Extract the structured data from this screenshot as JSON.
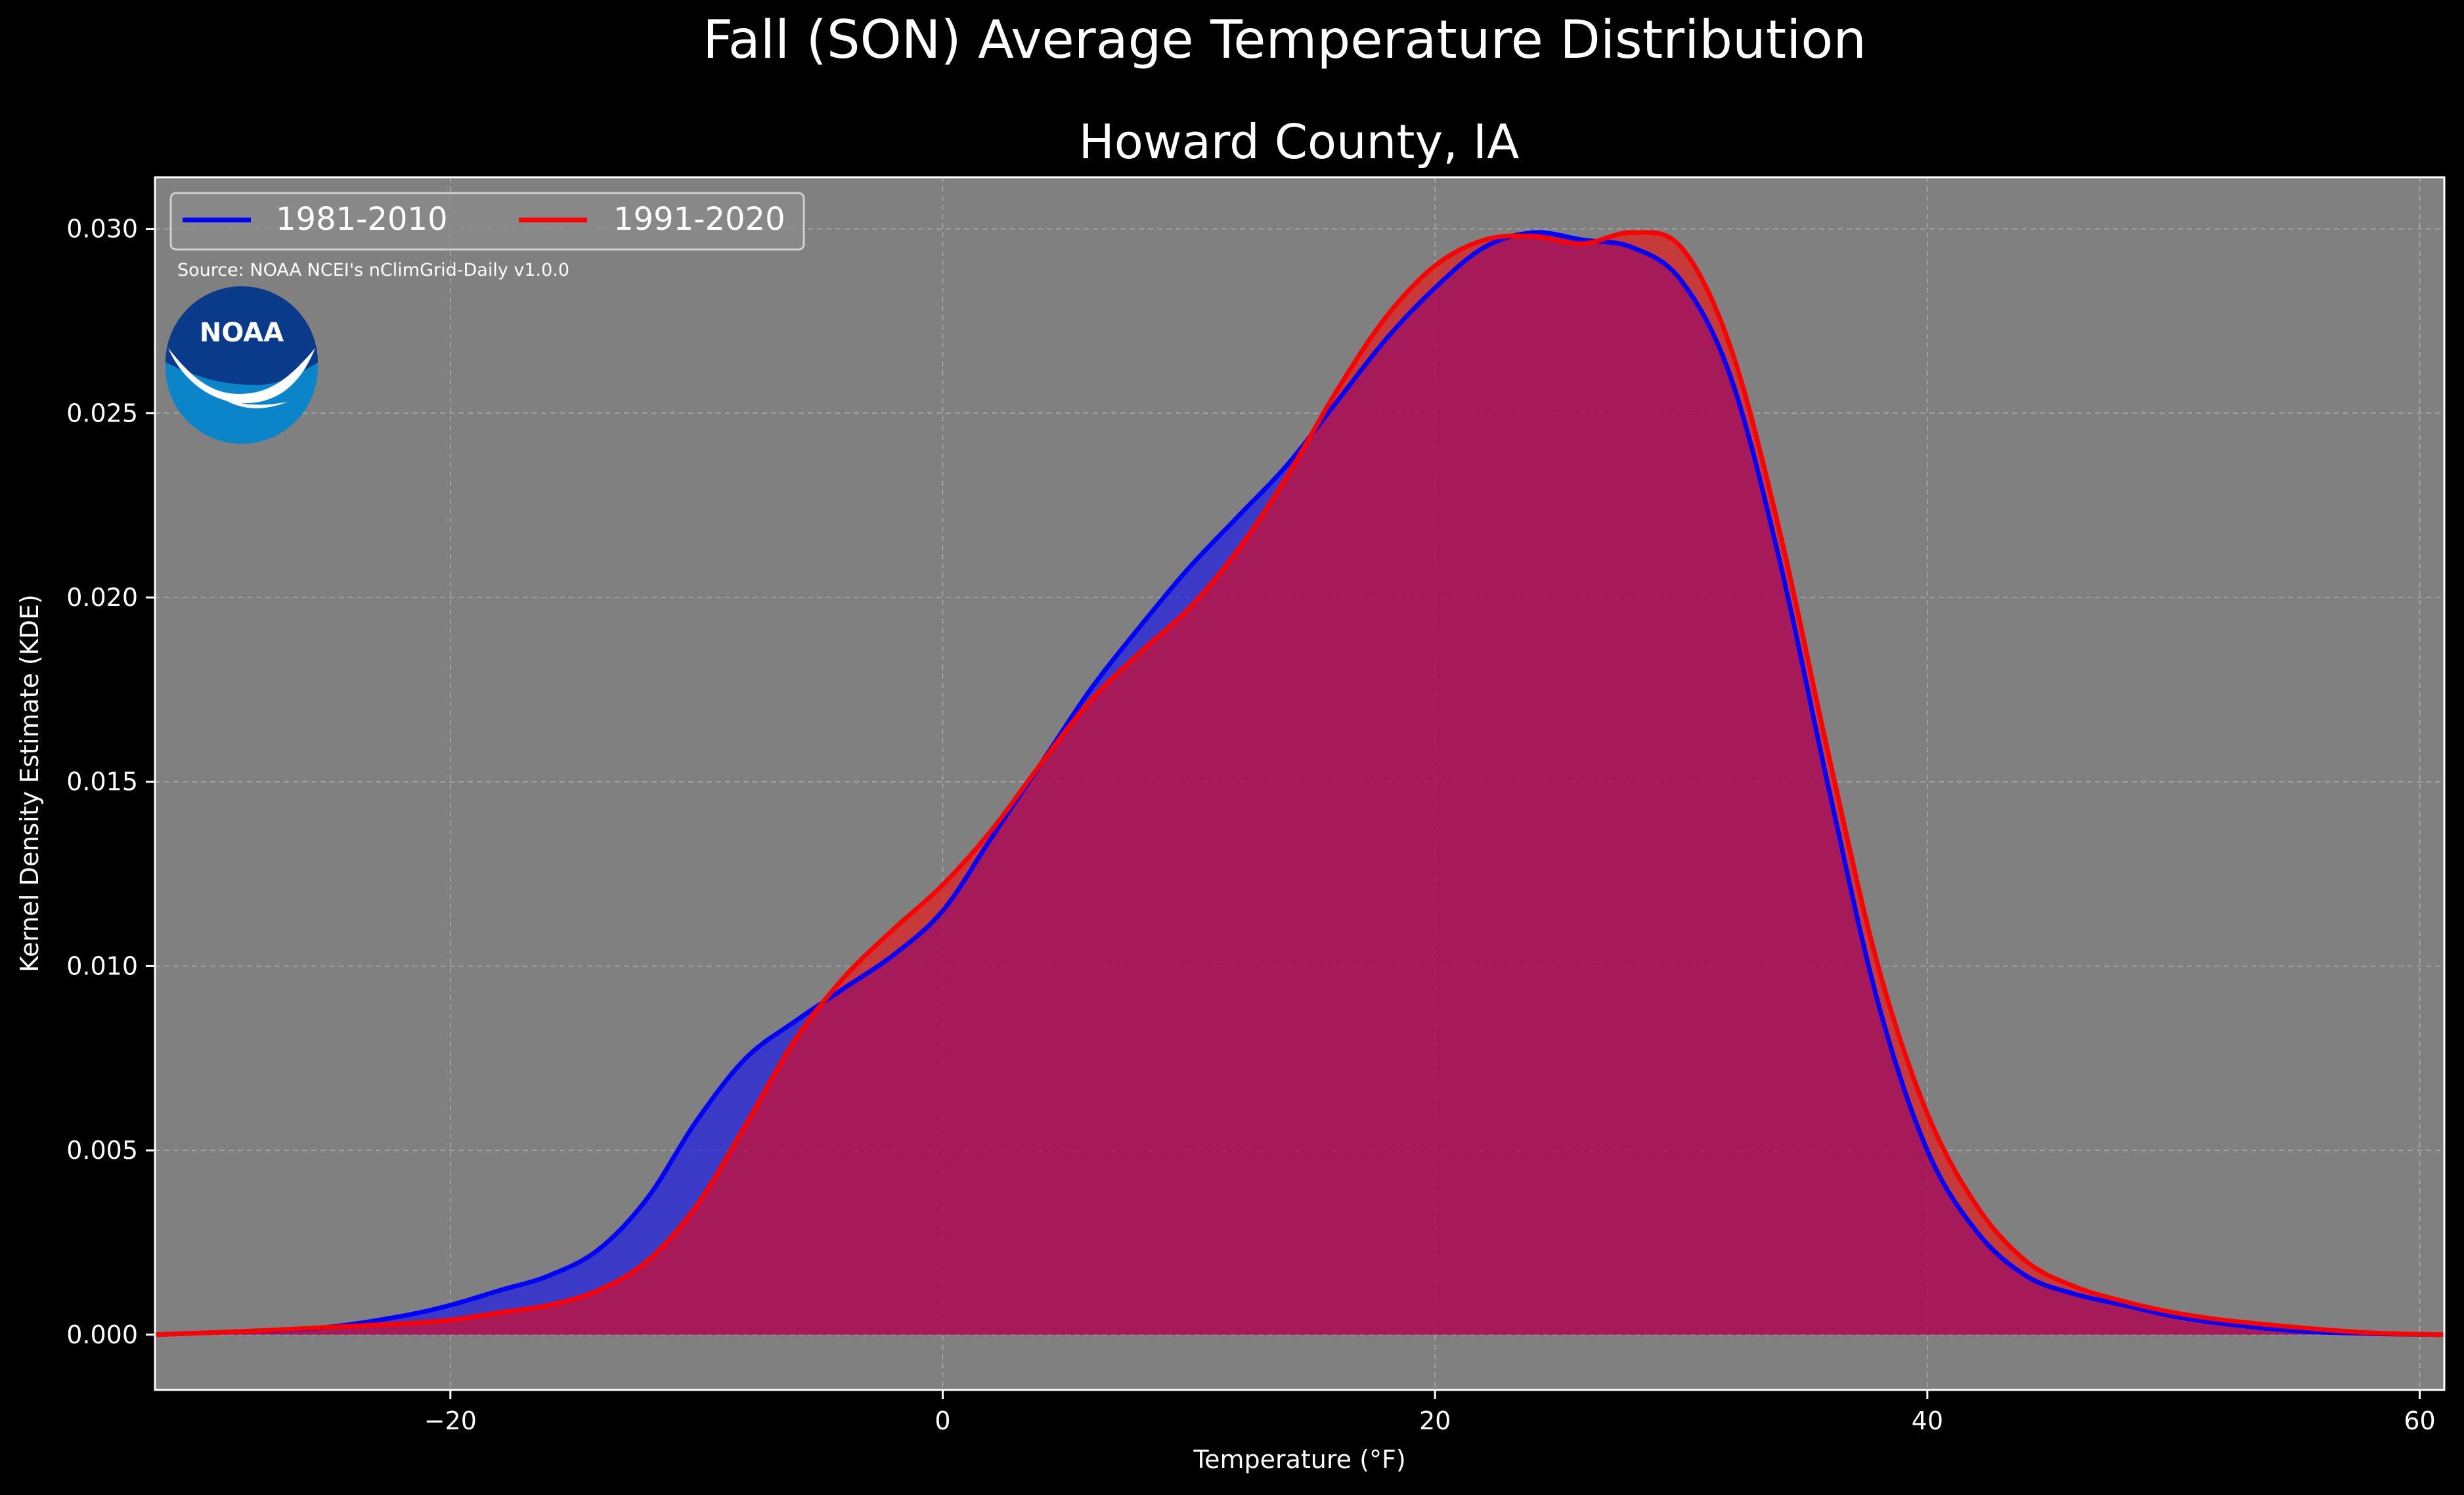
{
  "chart_data": {
    "type": "area",
    "title": "Fall (SON) Average Temperature Distribution",
    "subtitle": "Howard County, IA",
    "xlabel": "Temperature (°F)",
    "ylabel": "Kernel Density Estimate (KDE)",
    "xlim": [
      -32,
      61
    ],
    "ylim": [
      -0.0015,
      0.0314
    ],
    "xticks": [
      -20,
      0,
      20,
      40,
      60
    ],
    "xtick_labels": [
      "−20",
      "0",
      "20",
      "40",
      "60"
    ],
    "yticks": [
      0.0,
      0.005,
      0.01,
      0.015,
      0.02,
      0.025,
      0.03
    ],
    "ytick_labels": [
      "0.000",
      "0.005",
      "0.010",
      "0.015",
      "0.020",
      "0.025",
      "0.030"
    ],
    "grid": true,
    "legend_position": "top-left",
    "annotation": "Source: NOAA NCEI's nClimGrid-Daily v1.0.0",
    "logo_text": "NOAA",
    "colors": {
      "page_background": "#000000",
      "plot_background": "#808080",
      "series_1": "#0000ff",
      "series_2": "#ff0000",
      "overlap_fill": "#9e1e5e",
      "logo_dark": "#0a3a8a",
      "logo_light": "#0a85c9"
    },
    "series": [
      {
        "name": "1981-2010",
        "color": "#0000ff",
        "x": [
          -32,
          -28,
          -25,
          -22,
          -20,
          -18,
          -16,
          -14,
          -12,
          -10,
          -8,
          -6,
          -4,
          -2,
          0,
          2,
          4,
          6,
          8,
          10,
          12,
          14,
          16,
          18,
          20,
          22,
          24,
          26,
          28,
          30,
          32,
          34,
          36,
          38,
          40,
          42,
          44,
          46,
          48,
          50,
          52,
          55,
          58,
          61
        ],
        "y": [
          0.0,
          0.0001,
          0.0002,
          0.0005,
          0.0008,
          0.0012,
          0.0016,
          0.0023,
          0.0037,
          0.0058,
          0.0075,
          0.0085,
          0.0094,
          0.0103,
          0.0115,
          0.0135,
          0.0155,
          0.0175,
          0.0192,
          0.0208,
          0.0222,
          0.0236,
          0.0253,
          0.027,
          0.0284,
          0.0295,
          0.0299,
          0.0297,
          0.0295,
          0.0286,
          0.026,
          0.021,
          0.0148,
          0.009,
          0.005,
          0.0028,
          0.0016,
          0.0011,
          0.0008,
          0.0005,
          0.0003,
          0.0001,
          3e-05,
          0.0
        ]
      },
      {
        "name": "1991-2020",
        "color": "#ff0000",
        "x": [
          -32,
          -28,
          -25,
          -22,
          -20,
          -18,
          -16,
          -14,
          -12,
          -10,
          -8,
          -6,
          -4,
          -2,
          0,
          2,
          4,
          6,
          8,
          10,
          12,
          14,
          16,
          18,
          20,
          22,
          24,
          26,
          28,
          30,
          32,
          34,
          36,
          38,
          40,
          42,
          44,
          46,
          48,
          50,
          52,
          55,
          58,
          61
        ],
        "y": [
          0.0,
          0.0001,
          0.0002,
          0.0003,
          0.0004,
          0.0006,
          0.0008,
          0.0012,
          0.002,
          0.0035,
          0.0057,
          0.008,
          0.0097,
          0.011,
          0.0122,
          0.0137,
          0.0155,
          0.0172,
          0.0185,
          0.0197,
          0.0213,
          0.0233,
          0.0256,
          0.0276,
          0.029,
          0.0297,
          0.0298,
          0.0296,
          0.0299,
          0.0295,
          0.0268,
          0.0218,
          0.0157,
          0.01,
          0.006,
          0.0035,
          0.002,
          0.0013,
          0.0009,
          0.0006,
          0.0004,
          0.0002,
          5e-05,
          0.0
        ]
      }
    ]
  }
}
